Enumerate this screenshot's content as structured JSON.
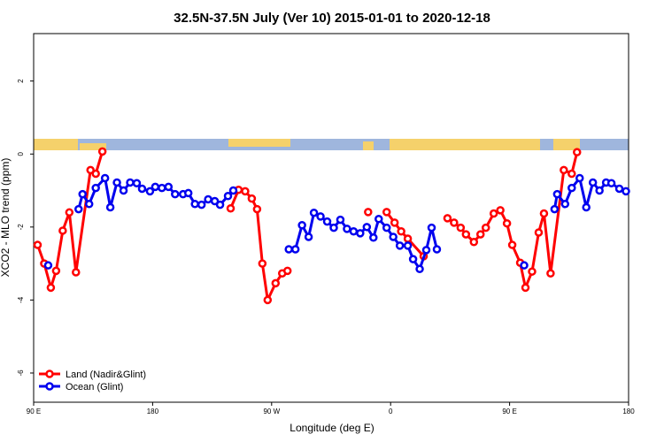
{
  "chart_data": {
    "type": "line",
    "title": "32.5N-37.5N July (Ver 10)   2015-01-01 to 2020-12-18",
    "x_label": "Longitude (deg E)",
    "y_label": "XCO2 - MLO trend (ppm)",
    "xlim": [
      90,
      540
    ],
    "xticks": [
      {
        "value": 90,
        "label": "90 E"
      },
      180,
      {
        "value": 270,
        "label": "90 W"
      },
      {
        "value": 360,
        "label": "0"
      },
      {
        "value": 450,
        "label": "90 E"
      },
      {
        "value": 540,
        "label": "180"
      }
    ],
    "ylim": [
      -6.8,
      3.3
    ],
    "yticks": [
      -6,
      -4,
      -2,
      0,
      2
    ],
    "legend": "bottom-left",
    "series": [
      {
        "name": "Land (Nadir&Glint)",
        "color": "#ff0000",
        "x": [
          93,
          98,
          103,
          107,
          112,
          117,
          122,
          133,
          137,
          142,
          null,
          239,
          245,
          250,
          255,
          259,
          263,
          267,
          273,
          278,
          282,
          null,
          343,
          null,
          357,
          363,
          368,
          373,
          385,
          null,
          403,
          408,
          413,
          417,
          423,
          428,
          432,
          438,
          443,
          448,
          452,
          458,
          462,
          467,
          472,
          476,
          481,
          491,
          497,
          501
        ],
        "values": [
          -2.49,
          -3.0,
          -3.66,
          -3.2,
          -2.1,
          -1.6,
          -3.24,
          -0.44,
          -0.54,
          0.07,
          null,
          -1.49,
          -0.98,
          -1.02,
          -1.22,
          -1.51,
          -3.0,
          -4.0,
          -3.54,
          -3.27,
          -3.2,
          null,
          -1.59,
          null,
          -1.59,
          -1.88,
          -2.12,
          -2.32,
          -2.8,
          null,
          -1.76,
          -1.88,
          -2.02,
          -2.2,
          -2.41,
          -2.2,
          -2.02,
          -1.63,
          -1.54,
          -1.9,
          -2.49,
          -2.98,
          -3.66,
          -3.22,
          -2.15,
          -1.63,
          -3.27,
          -0.44,
          -0.54,
          0.05
        ]
      },
      {
        "name": "Ocean (Glint)",
        "color": "#0000ee",
        "x": [
          101,
          null,
          124,
          127,
          132,
          137,
          144,
          148,
          153,
          158,
          163,
          168,
          172,
          178,
          182,
          187,
          192,
          197,
          203,
          207,
          212,
          217,
          222,
          227,
          231,
          237,
          241,
          null,
          283,
          288,
          293,
          298,
          302,
          307,
          312,
          317,
          322,
          327,
          332,
          337,
          342,
          347,
          351,
          357,
          362,
          367,
          373,
          377,
          382,
          387,
          391,
          395,
          null,
          461,
          null,
          484,
          486,
          492,
          497,
          503,
          508,
          513,
          518,
          523,
          527,
          533,
          538
        ],
        "values": [
          -3.05,
          null,
          -1.51,
          -1.1,
          -1.37,
          -0.93,
          -0.66,
          -1.46,
          -0.78,
          -1.0,
          -0.78,
          -0.8,
          -0.95,
          -1.02,
          -0.9,
          -0.93,
          -0.9,
          -1.1,
          -1.1,
          -1.07,
          -1.37,
          -1.39,
          -1.24,
          -1.29,
          -1.39,
          -1.15,
          -1.0,
          null,
          -2.61,
          -2.61,
          -1.95,
          -2.27,
          -1.61,
          -1.71,
          -1.85,
          -2.02,
          -1.8,
          -2.05,
          -2.12,
          -2.17,
          -2.0,
          -2.29,
          -1.78,
          -2.02,
          -2.27,
          -2.51,
          -2.51,
          -2.88,
          -3.15,
          -2.63,
          -2.02,
          -2.61,
          null,
          -3.05,
          null,
          -1.51,
          -1.1,
          -1.37,
          -0.93,
          -0.66,
          -1.46,
          -0.78,
          -1.0,
          -0.78,
          -0.8,
          -0.95,
          -1.02
        ]
      }
    ]
  }
}
